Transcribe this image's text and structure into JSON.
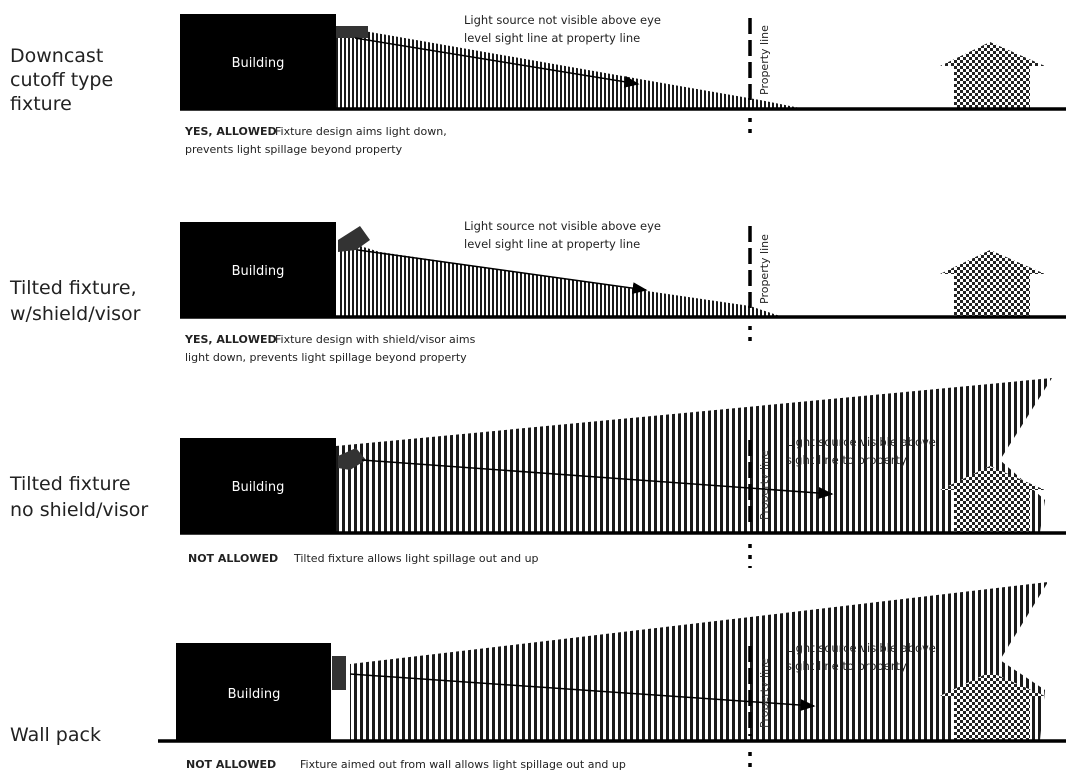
{
  "panels": [
    {
      "label_lines": [
        "Downcast",
        "cutoff type",
        "fixture"
      ],
      "building": "Building",
      "note_lines": [
        "Light source not visible above eye",
        "level sight line at property line"
      ],
      "property_line": "Property line",
      "verdict": "YES, ALLOWED",
      "caption_lines": [
        "Fixture design aims light down,",
        "prevents light spillage beyond property"
      ]
    },
    {
      "label_lines": [
        "Tilted fixture,",
        "w/shield/visor"
      ],
      "building": "Building",
      "note_lines": [
        "Light source not visible above eye",
        "level sight line at property line"
      ],
      "property_line": "Property line",
      "verdict": "YES, ALLOWED",
      "caption_lines": [
        "Fixture design with shield/visor aims",
        "light down, prevents light spillage beyond property"
      ]
    },
    {
      "label_lines": [
        "Tilted fixture",
        "no shield/visor"
      ],
      "building": "Building",
      "note_lines": [
        "Light source visible above",
        "sight line to property"
      ],
      "property_line": "Property line",
      "verdict": "NOT ALLOWED",
      "caption_lines": [
        "Tilted fixture allows light spillage out and up"
      ]
    },
    {
      "label_lines": [
        "Wall pack"
      ],
      "building": "Building",
      "note_lines": [
        "Light source visible above",
        "sight line to property"
      ],
      "property_line": "Property line",
      "verdict": "NOT ALLOWED",
      "caption_lines": [
        "Fixture aimed out from wall allows light spillage out and up"
      ]
    }
  ],
  "colors": {
    "ink": "#000000",
    "building_fill": "#000000",
    "light_pattern": "#1a1a1a"
  }
}
